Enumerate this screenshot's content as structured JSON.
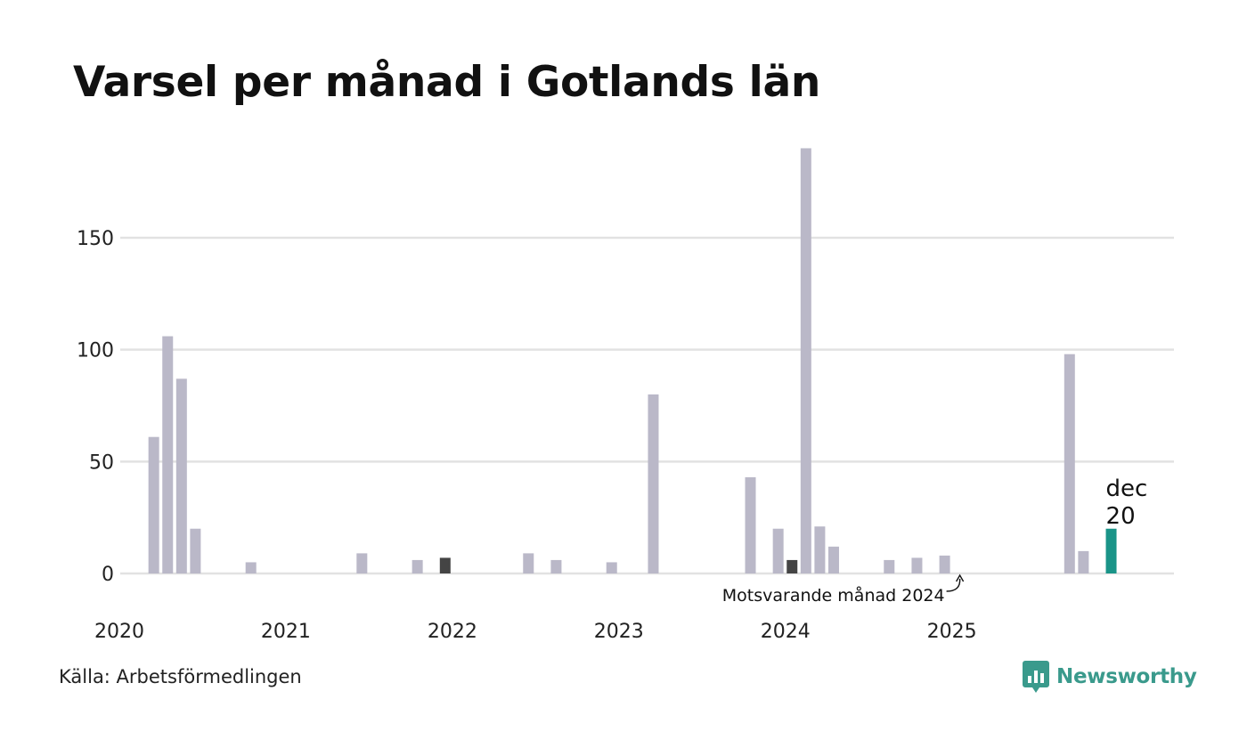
{
  "chart_data": {
    "type": "bar",
    "title": "Varsel per månad i Gotlands län",
    "xlabel": "",
    "ylabel": "",
    "ylim": [
      0,
      190
    ],
    "yticks": [
      0,
      50,
      100,
      150
    ],
    "x_year_labels": [
      "2020",
      "2021",
      "2022",
      "2023",
      "2024",
      "2025"
    ],
    "x_range": [
      "2020-01",
      "2025-12"
    ],
    "grid": true,
    "series": [
      {
        "name": "Varsel",
        "values": [
          {
            "month": "2020-03",
            "value": 61
          },
          {
            "month": "2020-04",
            "value": 106
          },
          {
            "month": "2020-05",
            "value": 87
          },
          {
            "month": "2020-06",
            "value": 20
          },
          {
            "month": "2020-10",
            "value": 5
          },
          {
            "month": "2021-06",
            "value": 9
          },
          {
            "month": "2021-10",
            "value": 6
          },
          {
            "month": "2021-12",
            "value": 7,
            "highlight": "dark"
          },
          {
            "month": "2022-06",
            "value": 9
          },
          {
            "month": "2022-08",
            "value": 6
          },
          {
            "month": "2022-12",
            "value": 5
          },
          {
            "month": "2023-03",
            "value": 80
          },
          {
            "month": "2023-10",
            "value": 43
          },
          {
            "month": "2023-12",
            "value": 20
          },
          {
            "month": "2024-01",
            "value": 6,
            "highlight": "dark"
          },
          {
            "month": "2024-02",
            "value": 190
          },
          {
            "month": "2024-03",
            "value": 21
          },
          {
            "month": "2024-04",
            "value": 12
          },
          {
            "month": "2024-08",
            "value": 6
          },
          {
            "month": "2024-10",
            "value": 7
          },
          {
            "month": "2024-12",
            "value": 8
          },
          {
            "month": "2025-09",
            "value": 98
          },
          {
            "month": "2025-10",
            "value": 10
          },
          {
            "month": "2025-12",
            "value": 20,
            "highlight": "current"
          }
        ]
      }
    ],
    "annotations": {
      "current_month": "dec",
      "current_value": "20",
      "comparison_label": "Motsvarande månad 2024"
    }
  },
  "colors": {
    "bar": "#bab8c8",
    "bar_dark": "#444444",
    "bar_current": "#1a9488",
    "grid": "#e2e2e2",
    "brand": "#3a9a8c"
  },
  "footer": {
    "source": "Källa: Arbetsförmedlingen",
    "brand": "Newsworthy",
    "brand_icon": "newsworthy-logo-icon"
  }
}
